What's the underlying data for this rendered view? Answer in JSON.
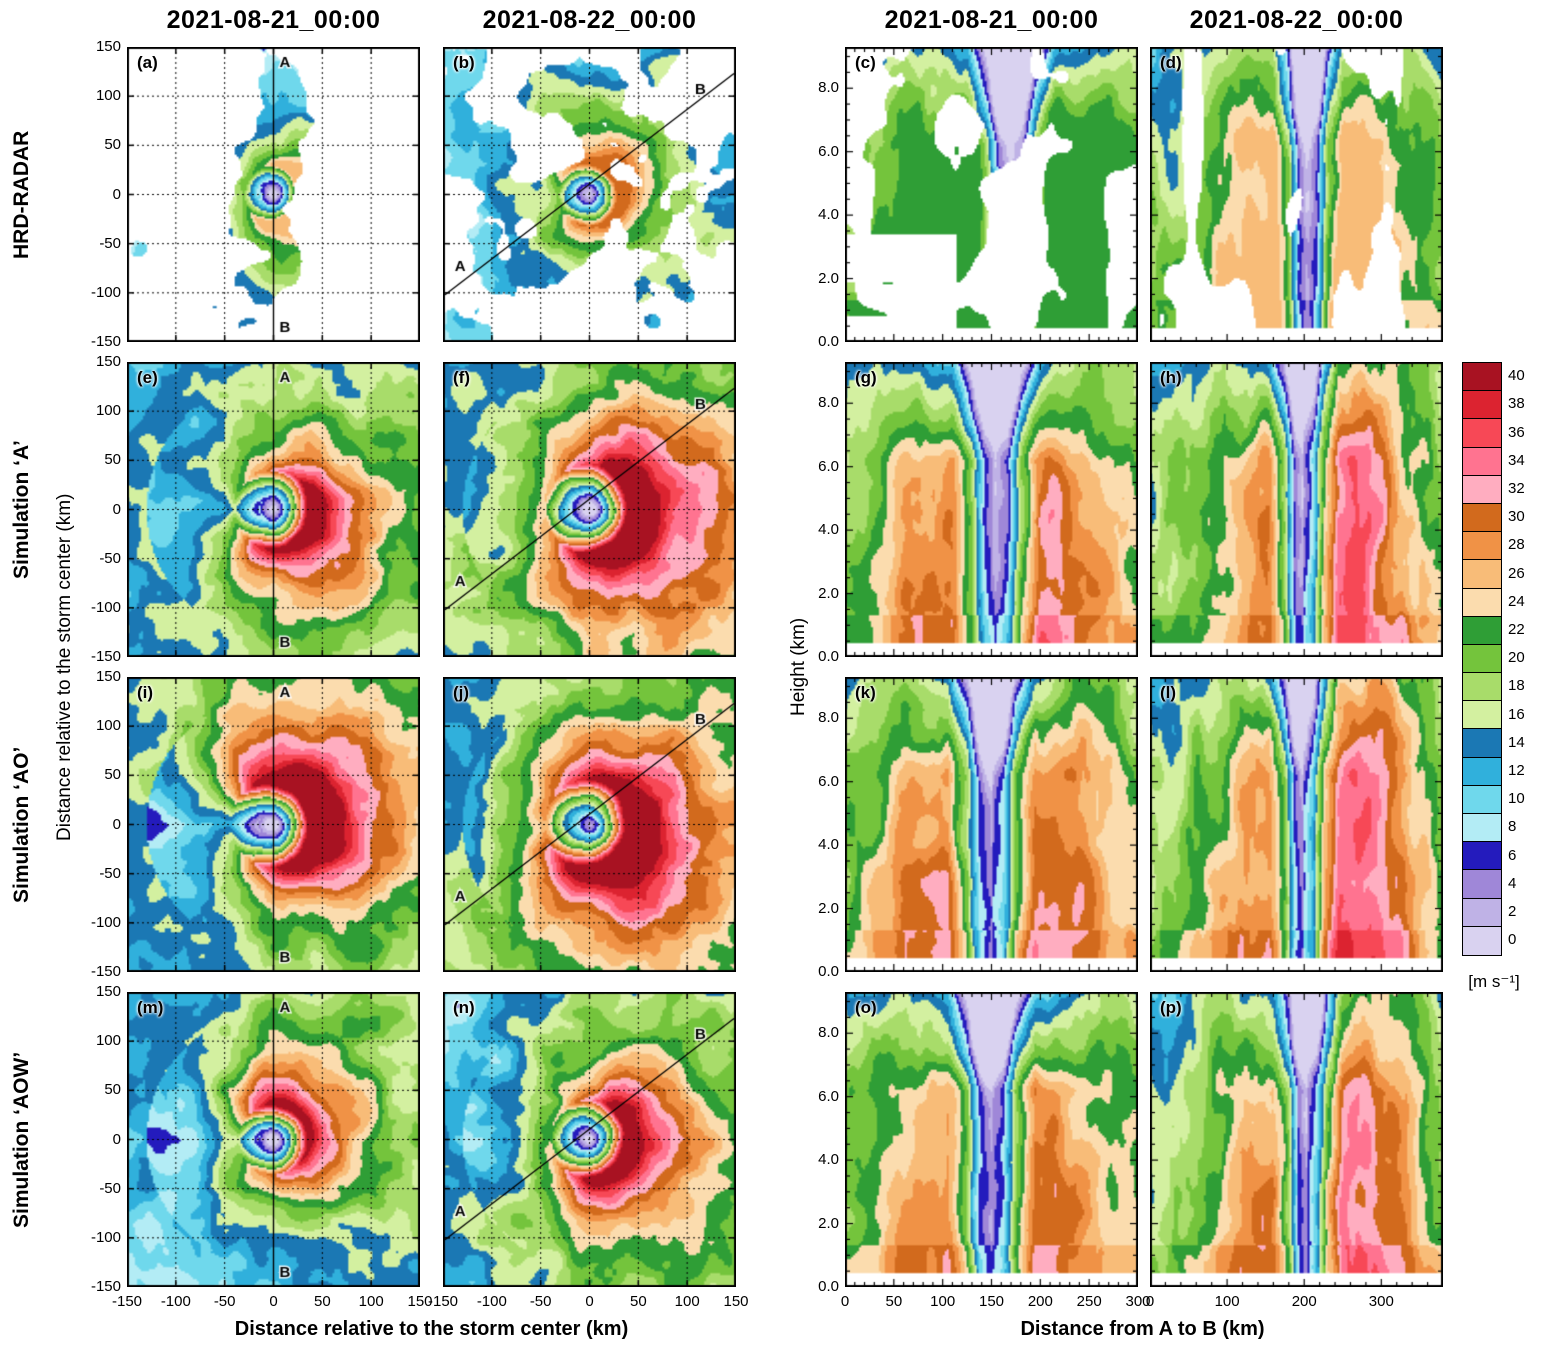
{
  "chart_data": {
    "type": "heatmap",
    "description": "16-panel (a–p) filled-contour figure of hurricane wind speed. Left two columns: plan views of wind speed relative to the storm center for HRD radar and three simulations at two times. Right two columns: vertical cross sections of wind speed along line A–B (height vs distance). Discrete filled contours every 2 m/s from 0 to 40+.",
    "unit": "[m s⁻¹]",
    "levels": [
      0,
      2,
      4,
      6,
      8,
      10,
      12,
      14,
      16,
      18,
      20,
      22,
      24,
      26,
      28,
      30,
      32,
      34,
      36,
      38,
      40
    ],
    "colors": [
      "#d9d2f0",
      "#bfb2e6",
      "#9f87d8",
      "#241bbd",
      "#b3ecf5",
      "#6fd8ec",
      "#30b0dc",
      "#1b78b4",
      "#d3f0a0",
      "#a8dc6a",
      "#74c43c",
      "#2f9e36",
      "#fbdcae",
      "#f8bc78",
      "#f09246",
      "#d26a1d",
      "#ffadc0",
      "#ff7390",
      "#f74856",
      "#dc2330",
      "#a81222"
    ],
    "column_titles": [
      "2021-08-21_00:00",
      "2021-08-22_00:00",
      "2021-08-21_00:00",
      "2021-08-22_00:00"
    ],
    "row_labels": [
      "HRD-RADAR",
      "Simulation ‘A’",
      "Simulation ‘AO’",
      "Simulation ‘AOW’"
    ],
    "ab_labels": [
      "A",
      "B"
    ],
    "plan_axis": {
      "x_range": [
        -150,
        150
      ],
      "y_range": [
        -150,
        150
      ],
      "ticks": [
        "-150",
        "-100",
        "-50",
        "0",
        "50",
        "100",
        "150"
      ],
      "tick_values": [
        -150,
        -100,
        -50,
        0,
        50,
        100,
        150
      ],
      "xlabel": "Distance relative to the storm center (km)",
      "ylabel": "Distance relative to the storm center (km)",
      "grid": "dotted every 50 km"
    },
    "xsec_axis": {
      "y_range": [
        0,
        9.3
      ],
      "y_ticks": [
        "0.0",
        "2.0",
        "4.0",
        "6.0",
        "8.0"
      ],
      "y_tick_values": [
        0,
        2,
        4,
        6,
        8
      ],
      "x_range_left": [
        0,
        300
      ],
      "x_ticks_left": [
        "0",
        "50",
        "100",
        "150",
        "200",
        "250",
        "300"
      ],
      "x_tick_values_left": [
        0,
        50,
        100,
        150,
        200,
        250,
        300
      ],
      "x_range_right": [
        0,
        380
      ],
      "x_ticks_right": [
        "0",
        "100",
        "200",
        "300"
      ],
      "x_tick_values_right": [
        0,
        100,
        200,
        300
      ],
      "xlabel": "Distance from A to B (km)",
      "ylabel": "Height (km)"
    },
    "panels": [
      {
        "id": "a",
        "label": "(a)",
        "row": 0,
        "col": 0,
        "kind": "radar-plan",
        "seed": 11,
        "line": "vertical",
        "params": {
          "vmax": 30,
          "rmax": 30,
          "cap": 27,
          "asym": 0.25,
          "phi": -0.5,
          "wedge": 0.8,
          "maskThr": 0.5,
          "swath": 0.55,
          "centerCov": 0.4
        }
      },
      {
        "id": "b",
        "label": "(b)",
        "row": 0,
        "col": 1,
        "kind": "radar-plan",
        "seed": 22,
        "line": "diagonal",
        "params": {
          "vmax": 32,
          "rmax": 32,
          "cap": 30,
          "asym": 0.2,
          "phi": 0.4,
          "wedge": 0.9,
          "maskThr": 0.16,
          "swath": 0.15,
          "centerCov": 0.9
        }
      },
      {
        "id": "c",
        "label": "(c)",
        "row": 0,
        "col": 2,
        "kind": "radar-xsec",
        "seed": 33,
        "params": {
          "x0": 170,
          "cap": 23,
          "rb": 2,
          "lb": 2,
          "cold": 3.0,
          "maskThr": 0.2,
          "lowLeftMask": 1,
          "xmax": 300
        }
      },
      {
        "id": "d",
        "label": "(d)",
        "row": 0,
        "col": 3,
        "kind": "radar-xsec",
        "seed": 44,
        "params": {
          "x0": 205,
          "cap": 26,
          "rb": 3,
          "lb": 2,
          "cold": 2.2,
          "maskThr": 0.08,
          "slot": 55,
          "xmax": 380
        }
      },
      {
        "id": "e",
        "label": "(e)",
        "row": 1,
        "col": 0,
        "kind": "sim-plan",
        "seed": 55,
        "line": "vertical",
        "params": {
          "vmax": 38,
          "rmax": 40,
          "asym": 0.24,
          "phi": -0.35,
          "wedge": 0.6
        }
      },
      {
        "id": "f",
        "label": "(f)",
        "row": 1,
        "col": 1,
        "kind": "sim-plan",
        "seed": 66,
        "line": "diagonal",
        "params": {
          "vmax": 43,
          "rmax": 46,
          "asym": 0.3,
          "phi": -0.25,
          "wedge": 0.82
        }
      },
      {
        "id": "g",
        "label": "(g)",
        "row": 1,
        "col": 2,
        "kind": "sim-xsec",
        "seed": 77,
        "params": {
          "x0": 155,
          "rb": 5,
          "lb": 3,
          "cold": 3.2,
          "xmax": 300
        }
      },
      {
        "id": "h",
        "label": "(h)",
        "row": 1,
        "col": 3,
        "kind": "sim-xsec",
        "seed": 88,
        "params": {
          "x0": 200,
          "rb": 9,
          "lb": 2,
          "cold": 2.2,
          "xmax": 380
        }
      },
      {
        "id": "i",
        "label": "(i)",
        "row": 2,
        "col": 0,
        "kind": "sim-plan",
        "seed": 99,
        "line": "vertical",
        "params": {
          "vmax": 42,
          "rmax": 44,
          "asym": 0.3,
          "phi": 0.45,
          "wedge": 0.5
        }
      },
      {
        "id": "j",
        "label": "(j)",
        "row": 2,
        "col": 1,
        "kind": "sim-plan",
        "seed": 111,
        "line": "diagonal",
        "params": {
          "vmax": 43,
          "rmax": 46,
          "asym": 0.28,
          "phi": -0.3,
          "wedge": 0.8
        }
      },
      {
        "id": "k",
        "label": "(k)",
        "row": 2,
        "col": 2,
        "kind": "sim-xsec",
        "seed": 122,
        "params": {
          "x0": 150,
          "rb": 6,
          "lb": 3,
          "cold": 2.6,
          "xmax": 300
        }
      },
      {
        "id": "l",
        "label": "(l)",
        "row": 2,
        "col": 3,
        "kind": "sim-xsec",
        "seed": 133,
        "params": {
          "x0": 200,
          "rb": 11,
          "lb": 2,
          "cold": 1.8,
          "xmax": 380
        }
      },
      {
        "id": "m",
        "label": "(m)",
        "row": 3,
        "col": 0,
        "kind": "sim-plan",
        "seed": 144,
        "line": "vertical",
        "params": {
          "vmax": 36,
          "rmax": 36,
          "asym": 0.26,
          "phi": 0.55,
          "wedge": 0.62
        }
      },
      {
        "id": "n",
        "label": "(n)",
        "row": 3,
        "col": 1,
        "kind": "sim-plan",
        "seed": 155,
        "line": "diagonal",
        "params": {
          "vmax": 39,
          "rmax": 40,
          "asym": 0.3,
          "phi": -0.35,
          "wedge": 0.75
        }
      },
      {
        "id": "o",
        "label": "(o)",
        "row": 3,
        "col": 2,
        "kind": "sim-xsec",
        "seed": 166,
        "params": {
          "x0": 150,
          "rb": 4,
          "lb": 3,
          "cold": 3.4,
          "xmax": 300
        }
      },
      {
        "id": "p",
        "label": "(p)",
        "row": 3,
        "col": 3,
        "kind": "sim-xsec",
        "seed": 177,
        "params": {
          "x0": 205,
          "rb": 8,
          "lb": 2,
          "cold": 2.4,
          "xmax": 380
        }
      }
    ],
    "legend_position": "right vertical colorbar, 0–40 labeled every 2"
  }
}
